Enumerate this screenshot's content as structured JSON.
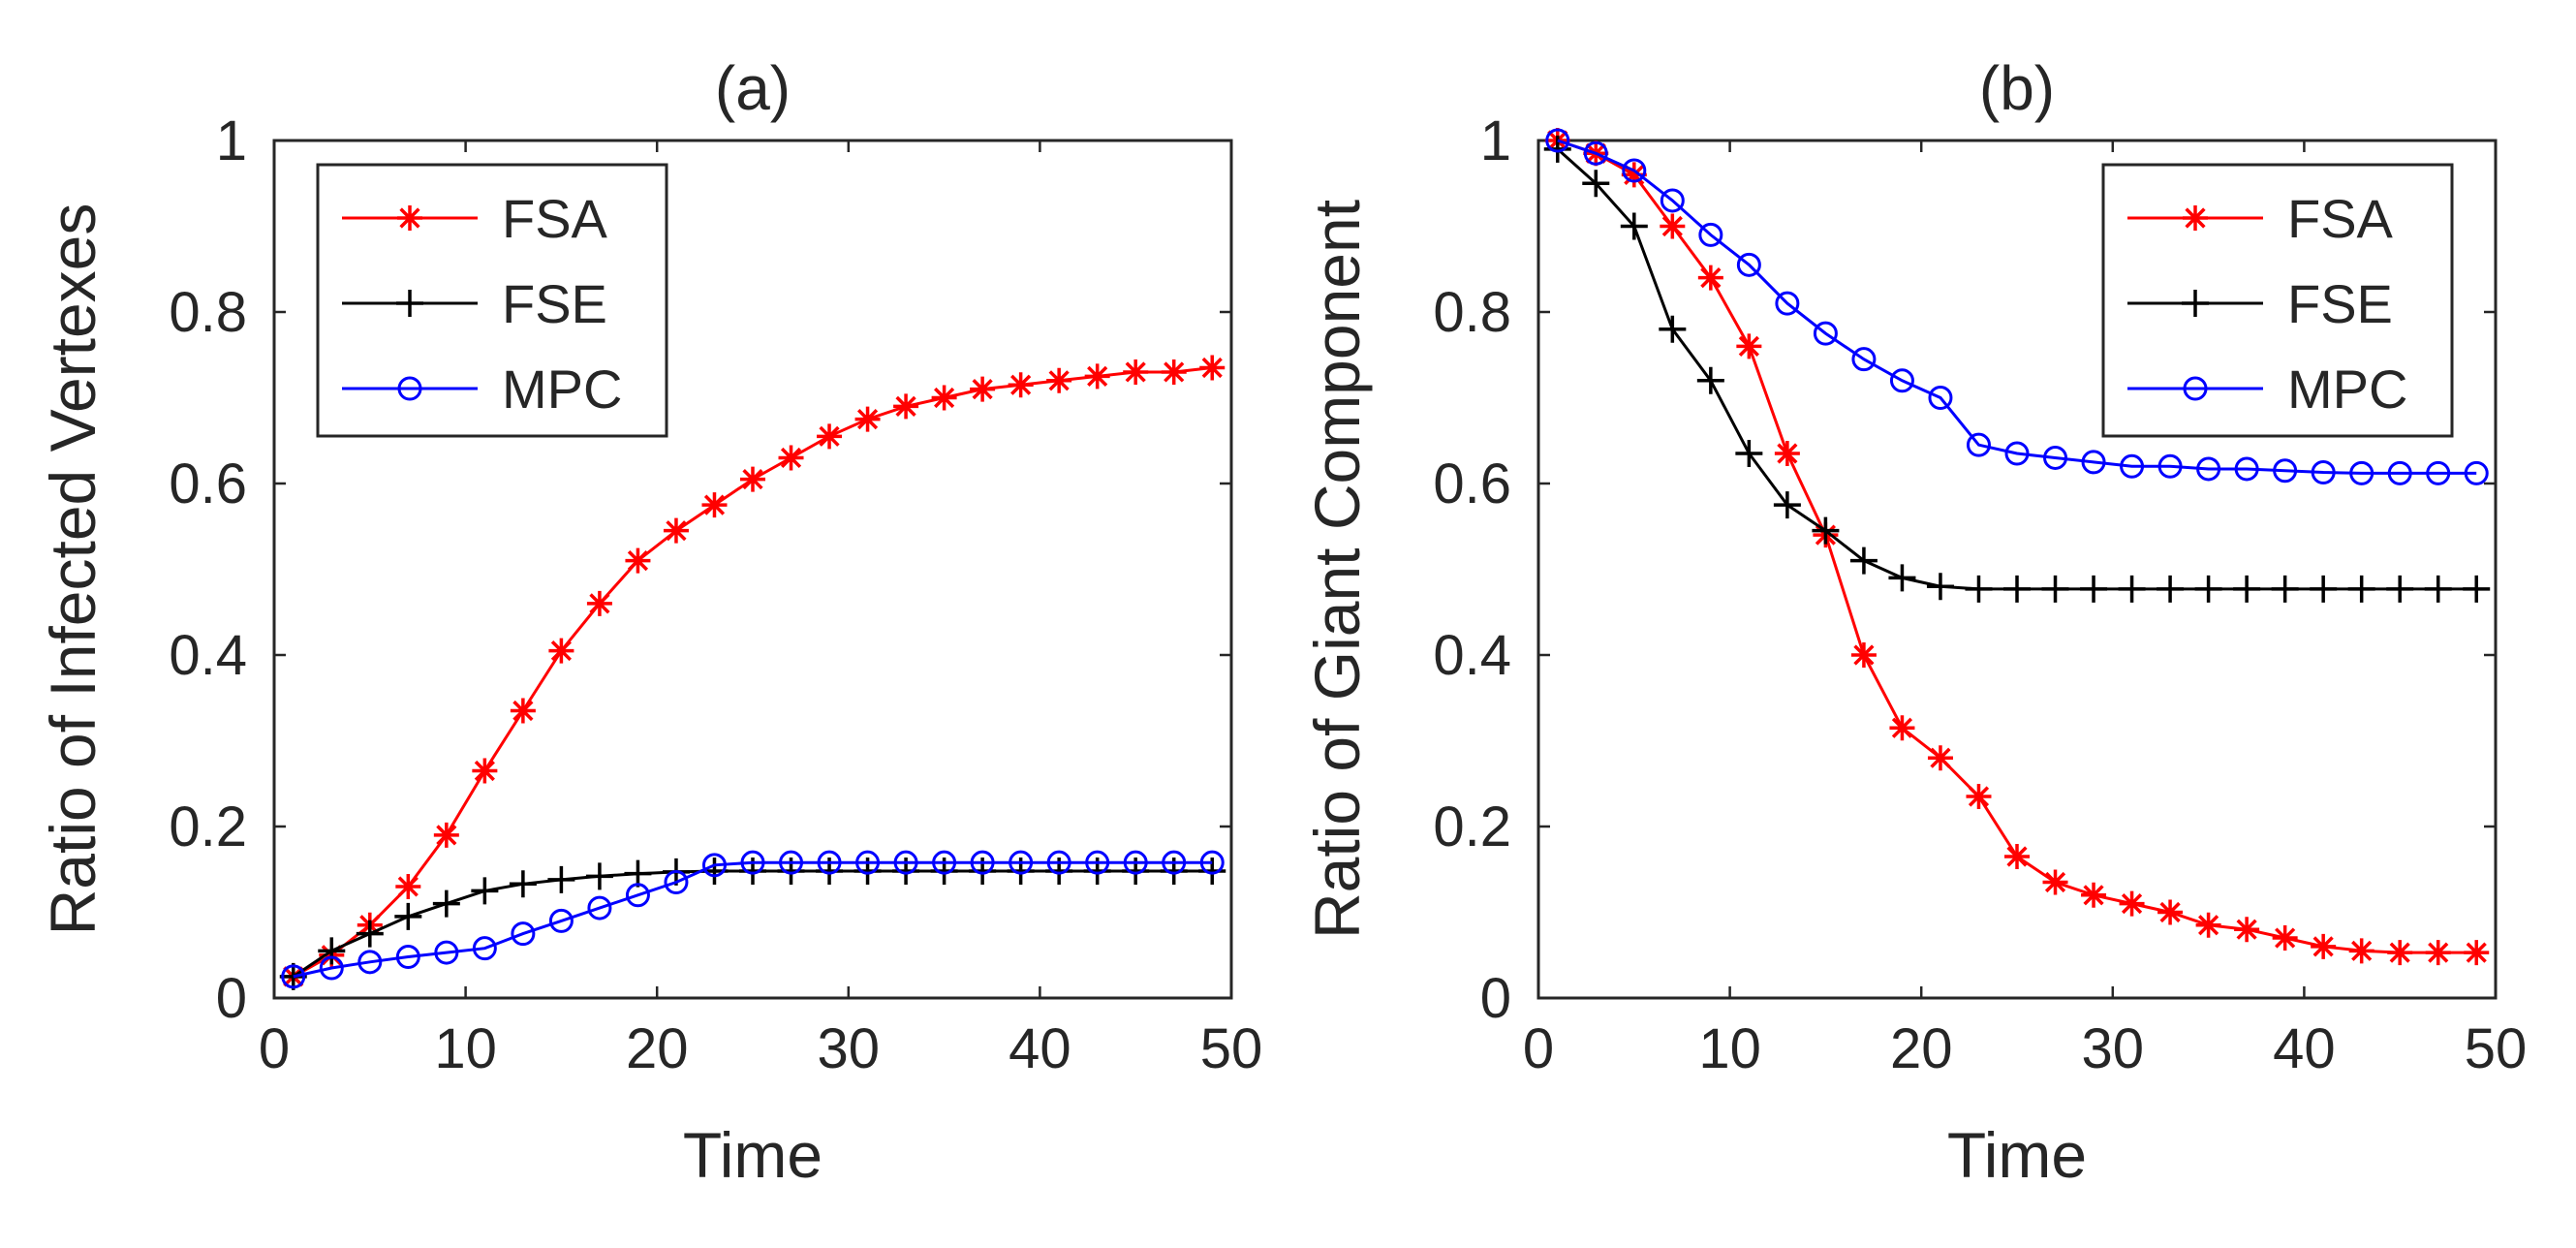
{
  "chart_data": [
    {
      "type": "line",
      "title": "(a)",
      "xlabel": "Time",
      "ylabel": "Ratio of Infected Vertexes",
      "xlim": [
        0,
        50
      ],
      "ylim": [
        0,
        1
      ],
      "xticks": [
        "0",
        "10",
        "20",
        "30",
        "40",
        "50"
      ],
      "yticks": [
        "0",
        "0.2",
        "0.4",
        "0.6",
        "0.8",
        "1"
      ],
      "legend_position": "top-left",
      "x": [
        1,
        3,
        5,
        7,
        9,
        11,
        13,
        15,
        17,
        19,
        21,
        23,
        25,
        27,
        29,
        31,
        33,
        35,
        37,
        39,
        41,
        43,
        45,
        47,
        49
      ],
      "series": [
        {
          "name": "FSA",
          "color": "#ff0000",
          "marker": "asterisk",
          "values": [
            0.025,
            0.05,
            0.085,
            0.13,
            0.19,
            0.265,
            0.335,
            0.405,
            0.46,
            0.51,
            0.545,
            0.575,
            0.605,
            0.63,
            0.655,
            0.675,
            0.69,
            0.7,
            0.71,
            0.715,
            0.72,
            0.725,
            0.73,
            0.73,
            0.735
          ]
        },
        {
          "name": "FSE",
          "color": "#000000",
          "marker": "plus",
          "values": [
            0.025,
            0.055,
            0.075,
            0.095,
            0.11,
            0.125,
            0.133,
            0.138,
            0.142,
            0.145,
            0.147,
            0.148,
            0.148,
            0.148,
            0.148,
            0.148,
            0.148,
            0.148,
            0.148,
            0.148,
            0.148,
            0.148,
            0.148,
            0.148,
            0.148
          ]
        },
        {
          "name": "MPC",
          "color": "#0000ff",
          "marker": "circle",
          "values": [
            0.025,
            0.035,
            0.042,
            0.048,
            0.053,
            0.058,
            0.075,
            0.09,
            0.105,
            0.12,
            0.135,
            0.155,
            0.158,
            0.158,
            0.158,
            0.158,
            0.158,
            0.158,
            0.158,
            0.158,
            0.158,
            0.158,
            0.158,
            0.158,
            0.158
          ]
        }
      ]
    },
    {
      "type": "line",
      "title": "(b)",
      "xlabel": "Time",
      "ylabel": "Ratio of Giant Component",
      "xlim": [
        0,
        50
      ],
      "ylim": [
        0,
        1
      ],
      "xticks": [
        "0",
        "10",
        "20",
        "30",
        "40",
        "50"
      ],
      "yticks": [
        "0",
        "0.2",
        "0.4",
        "0.6",
        "0.8",
        "1"
      ],
      "legend_position": "top-right",
      "x": [
        1,
        3,
        5,
        7,
        9,
        11,
        13,
        15,
        17,
        19,
        21,
        23,
        25,
        27,
        29,
        31,
        33,
        35,
        37,
        39,
        41,
        43,
        45,
        47,
        49
      ],
      "series": [
        {
          "name": "FSA",
          "color": "#ff0000",
          "marker": "asterisk",
          "values": [
            1.0,
            0.985,
            0.96,
            0.9,
            0.84,
            0.76,
            0.635,
            0.54,
            0.4,
            0.315,
            0.28,
            0.235,
            0.165,
            0.135,
            0.12,
            0.11,
            0.1,
            0.085,
            0.08,
            0.07,
            0.06,
            0.055,
            0.053,
            0.053,
            0.053
          ]
        },
        {
          "name": "FSE",
          "color": "#000000",
          "marker": "plus",
          "values": [
            0.99,
            0.95,
            0.9,
            0.78,
            0.72,
            0.635,
            0.575,
            0.545,
            0.51,
            0.49,
            0.48,
            0.477,
            0.477,
            0.477,
            0.477,
            0.477,
            0.477,
            0.477,
            0.477,
            0.477,
            0.477,
            0.477,
            0.477,
            0.477,
            0.477
          ]
        },
        {
          "name": "MPC",
          "color": "#0000ff",
          "marker": "circle",
          "values": [
            1.0,
            0.985,
            0.965,
            0.93,
            0.89,
            0.855,
            0.81,
            0.775,
            0.745,
            0.72,
            0.7,
            0.645,
            0.635,
            0.63,
            0.625,
            0.62,
            0.62,
            0.617,
            0.617,
            0.615,
            0.613,
            0.612,
            0.612,
            0.612,
            0.612
          ]
        }
      ]
    }
  ]
}
